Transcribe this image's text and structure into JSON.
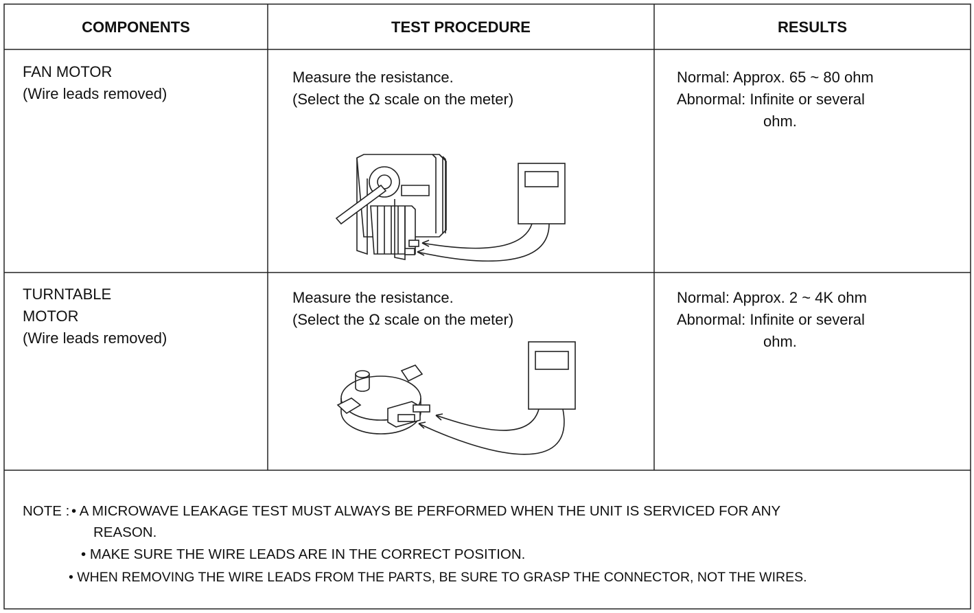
{
  "table": {
    "headers": [
      "COMPONENTS",
      "TEST PROCEDURE",
      "RESULTS"
    ],
    "rows": [
      {
        "component": [
          "FAN MOTOR",
          "(Wire leads removed)"
        ],
        "procedure": [
          "Measure the resistance.",
          "(Select the Ω scale on the meter)"
        ],
        "results": [
          "Normal: Approx. 65 ~ 80 ohm",
          "Abnormal: Infinite or several",
          "ohm."
        ]
      },
      {
        "component": [
          "TURNTABLE",
          "MOTOR",
          "(Wire leads removed)"
        ],
        "procedure": [
          "Measure the resistance.",
          "(Select the Ω scale on the meter)"
        ],
        "results": [
          "Normal: Approx. 2 ~ 4K ohm",
          "Abnormal: Infinite or several",
          "ohm."
        ]
      }
    ]
  },
  "note": {
    "label": "NOTE :",
    "lines": [
      "• A MICROWAVE LEAKAGE TEST MUST ALWAYS BE PERFORMED WHEN THE UNIT IS SERVICED FOR ANY",
      "REASON.",
      "• MAKE SURE THE WIRE LEADS ARE IN THE CORRECT POSITION.",
      "• WHEN REMOVING THE WIRE LEADS FROM THE PARTS, BE SURE TO GRASP THE CONNECTOR, NOT THE WIRES."
    ]
  }
}
